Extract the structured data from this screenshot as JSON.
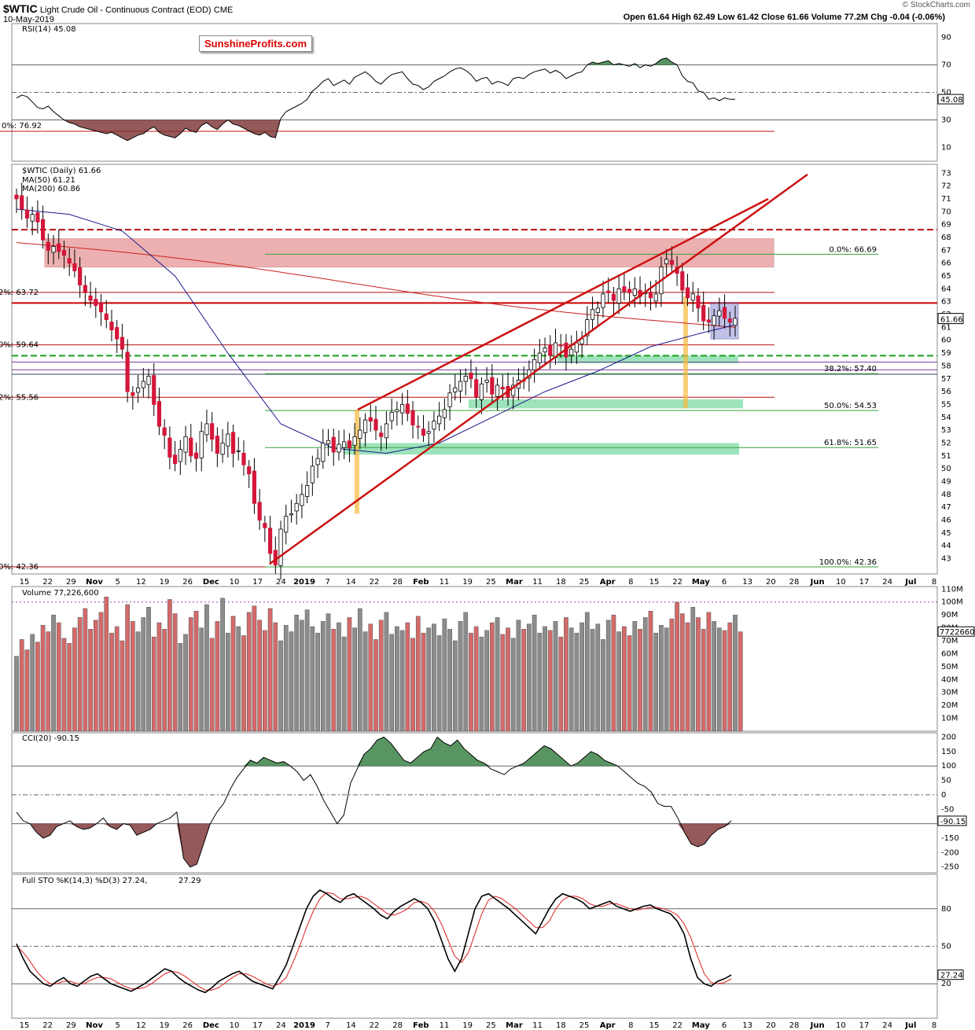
{
  "header": {
    "symbol": "$WTIC",
    "name": "Light Crude Oil - Continuous Contract (EOD)",
    "exchange": "CME",
    "date": "10-May-2019",
    "watermark_top": "© StockCharts.com",
    "ohlc": "Open 61.64  High 62.49  Low 61.42  Close 61.66  Volume 77.2M  Chg -0.04 (-0.06%)"
  },
  "watermark": "SunshineProfits.com",
  "colors": {
    "up": "#ffffff",
    "down": "#d4163a",
    "ma50": "#1a1a8c",
    "ma200": "#cc2222",
    "trend": "#cc1111",
    "support": "#3cc878",
    "resist": "#e07070",
    "vol_up": "#8c8c8c",
    "vol_down": "#d46a6a",
    "osc_pos": "#2f7a3c",
    "osc_neg": "#7a2f2f"
  },
  "panels": {
    "rsi": {
      "label": "RSI(14) 45.08",
      "last": "45.08",
      "ticks": [
        "90",
        "70",
        "50",
        "30",
        "10"
      ],
      "left_label": "0%: 76.92"
    },
    "price": {
      "label": "$WTIC (Daily) 61.66",
      "ma50_label": "MA(50) 61.21",
      "ma200_label": "MA(200) 60.86",
      "last": "61.66",
      "ticks": [
        "73",
        "72",
        "71",
        "70",
        "69",
        "68",
        "67",
        "66",
        "65",
        "64",
        "63",
        "62",
        "61",
        "60",
        "59",
        "58",
        "57",
        "56",
        "55",
        "54",
        "53",
        "52",
        "51",
        "50",
        "49",
        "48",
        "47",
        "46",
        "45",
        "44",
        "43"
      ],
      "fib_labels": [
        "0.0%: 66.69",
        "38.2%: 57.40",
        "50.0%: 54.53",
        "61.8%: 51.65",
        "100.0%: 42.36"
      ],
      "left_labels": [
        "2%: 63.72",
        "0%: 59.64",
        "2%: 55.56",
        "0%: 42.36"
      ]
    },
    "volume": {
      "label": "Volume 77,226,600",
      "last": "77226600",
      "ticks": [
        "110M",
        "100M",
        "90M",
        "80M",
        "70M",
        "60M",
        "50M",
        "40M",
        "30M",
        "20M",
        "10M"
      ]
    },
    "cci": {
      "label": "CCI(20) -90.15",
      "last": "-90.15",
      "ticks": [
        "200",
        "150",
        "100",
        "50",
        "0",
        "-50",
        "-100",
        "-150",
        "-200",
        "-250"
      ]
    },
    "sto": {
      "label": "Full STO %K(14,3) %D(3) 27.24, 27.29",
      "label_k": "Full STO %K(14,3) %D(3) 27.24,",
      "label_d": "27.29",
      "last": "27.24",
      "ticks": [
        "80",
        "50",
        "20"
      ]
    }
  },
  "date_axis": [
    "15",
    "22",
    "29",
    "Nov",
    "5",
    "12",
    "19",
    "26",
    "Dec",
    "10",
    "17",
    "24",
    "2019",
    "7",
    "14",
    "22",
    "28",
    "Feb",
    "11",
    "19",
    "25",
    "Mar",
    "11",
    "18",
    "25",
    "Apr",
    "8",
    "15",
    "22",
    "May",
    "6",
    "13",
    "20",
    "28",
    "Jun",
    "10",
    "17",
    "24",
    "Jul",
    "8"
  ],
  "chart_data": {
    "type": "candlestick",
    "title": "$WTIC Light Crude Oil - Continuous Contract (EOD)",
    "period": "Oct 2018 - May 10 2019",
    "last_bar": {
      "open": 61.64,
      "high": 62.49,
      "low": 61.42,
      "close": 61.66,
      "volume": 77226600
    },
    "ma50": 61.21,
    "ma200": 60.86,
    "close_series": [
      71.0,
      70.2,
      69.5,
      69.8,
      69.2,
      67.8,
      67.0,
      67.3,
      66.9,
      66.6,
      66.0,
      65.4,
      64.3,
      63.7,
      63.1,
      62.7,
      62.2,
      61.6,
      60.8,
      60.1,
      59.3,
      56.0,
      55.7,
      56.3,
      56.8,
      57.2,
      55.0,
      53.3,
      52.6,
      50.9,
      50.4,
      51.5,
      52.5,
      51.0,
      50.8,
      52.9,
      53.5,
      52.3,
      51.2,
      52.0,
      52.7,
      51.2,
      51.4,
      50.3,
      49.6,
      47.3,
      46.0,
      45.4,
      43.4,
      42.5,
      45.3,
      46.3,
      46.5,
      47.3,
      48.0,
      48.7,
      50.2,
      50.8,
      52.0,
      52.2,
      51.3,
      51.9,
      52.1,
      51.6,
      52.5,
      53.0,
      53.8,
      53.7,
      53.0,
      52.5,
      53.5,
      54.4,
      54.6,
      55.0,
      54.3,
      53.4,
      53.3,
      52.6,
      52.9,
      53.7,
      54.1,
      54.6,
      55.9,
      56.3,
      56.8,
      57.2,
      57.0,
      55.6,
      56.6,
      56.9,
      55.8,
      56.5,
      56.2,
      55.6,
      56.5,
      56.9,
      56.8,
      57.7,
      58.5,
      59.0,
      59.4,
      58.8,
      59.8,
      59.6,
      58.7,
      59.3,
      59.8,
      60.1,
      61.6,
      62.4,
      62.5,
      63.6,
      63.7,
      63.1,
      64.0,
      63.8,
      63.7,
      64.0,
      63.4,
      63.7,
      63.3,
      63.6,
      65.7,
      66.3,
      65.9,
      65.2,
      63.9,
      63.3,
      63.6,
      62.5,
      61.5,
      61.4,
      61.9,
      62.3,
      61.7,
      61.4,
      61.7
    ],
    "volume_M": [
      58,
      71,
      63,
      75,
      69,
      82,
      77,
      90,
      84,
      72,
      68,
      80,
      88,
      95,
      79,
      86,
      92,
      104,
      76,
      81,
      70,
      98,
      85,
      77,
      88,
      96,
      73,
      84,
      79,
      102,
      91,
      68,
      75,
      88,
      93,
      80,
      98,
      72,
      85,
      103,
      76,
      89,
      81,
      74,
      92,
      97,
      86,
      78,
      95,
      84,
      70,
      82,
      77,
      90,
      86,
      94,
      81,
      76,
      85,
      91,
      79,
      84,
      73,
      88,
      80,
      95,
      77,
      83,
      71,
      86,
      92,
      75,
      81,
      78,
      84,
      72,
      89,
      76,
      80,
      83,
      74,
      87,
      79,
      70,
      85,
      92,
      76,
      81,
      73,
      78,
      84,
      88,
      75,
      80,
      72,
      86,
      79,
      83,
      90,
      76,
      81,
      78,
      85,
      73,
      88,
      80,
      76,
      84,
      92,
      79,
      83,
      71,
      86,
      90,
      77,
      81,
      74,
      85,
      79,
      88,
      93,
      76,
      82,
      80,
      87,
      100,
      91,
      84,
      96,
      88,
      79,
      92,
      85,
      80,
      78,
      84,
      90,
      77
    ],
    "rsi_series": [
      46,
      48,
      47,
      43,
      39,
      38,
      40,
      36,
      33,
      30,
      28,
      27,
      25,
      24,
      23,
      22,
      21,
      20,
      21,
      19,
      17,
      15,
      17,
      19,
      20,
      23,
      25,
      21,
      19,
      18,
      17,
      20,
      24,
      22,
      21,
      26,
      28,
      25,
      23,
      27,
      30,
      27,
      26,
      24,
      22,
      20,
      19,
      21,
      18,
      17,
      31,
      36,
      38,
      40,
      42,
      45,
      51,
      54,
      58,
      60,
      55,
      57,
      59,
      56,
      61,
      63,
      65,
      62,
      58,
      56,
      60,
      63,
      64,
      65,
      60,
      56,
      55,
      52,
      54,
      58,
      60,
      62,
      65,
      67,
      68,
      66,
      63,
      58,
      60,
      61,
      56,
      58,
      57,
      55,
      60,
      61,
      60,
      63,
      65,
      66,
      67,
      64,
      66,
      64,
      60,
      62,
      64,
      65,
      70,
      72,
      71,
      72,
      73,
      70,
      71,
      70,
      69,
      71,
      68,
      70,
      69,
      71,
      74,
      75,
      72,
      70,
      62,
      58,
      57,
      51,
      50,
      45,
      46,
      44,
      46,
      45,
      45
    ],
    "cci_series": [
      -60,
      -90,
      -100,
      -130,
      -150,
      -140,
      -110,
      -100,
      -90,
      -110,
      -120,
      -115,
      -100,
      -80,
      -110,
      -120,
      -100,
      -105,
      -140,
      -130,
      -120,
      -100,
      -90,
      -80,
      -60,
      -220,
      -250,
      -240,
      -170,
      -100,
      -60,
      -30,
      20,
      60,
      90,
      120,
      110,
      130,
      120,
      110,
      115,
      100,
      80,
      50,
      70,
      30,
      -20,
      -60,
      -100,
      -70,
      40,
      90,
      140,
      160,
      190,
      200,
      180,
      150,
      120,
      110,
      130,
      150,
      160,
      200,
      180,
      170,
      190,
      160,
      140,
      120,
      110,
      90,
      80,
      70,
      90,
      100,
      110,
      130,
      150,
      170,
      160,
      140,
      120,
      100,
      110,
      130,
      150,
      140,
      120,
      110,
      100,
      80,
      60,
      40,
      30,
      10,
      -30,
      -40,
      -40,
      -80,
      -130,
      -170,
      -180,
      -170,
      -140,
      -120,
      -110,
      -90
    ],
    "sto_k_series": [
      52,
      40,
      30,
      25,
      20,
      18,
      22,
      25,
      20,
      18,
      22,
      26,
      28,
      24,
      20,
      18,
      16,
      14,
      17,
      20,
      24,
      28,
      32,
      30,
      25,
      21,
      18,
      15,
      13,
      17,
      22,
      25,
      28,
      30,
      26,
      22,
      20,
      18,
      16,
      25,
      35,
      50,
      65,
      80,
      90,
      95,
      92,
      88,
      85,
      90,
      92,
      88,
      84,
      80,
      75,
      72,
      78,
      82,
      85,
      88,
      85,
      80,
      70,
      55,
      40,
      30,
      40,
      60,
      80,
      90,
      92,
      88,
      84,
      80,
      75,
      70,
      65,
      60,
      70,
      80,
      88,
      92,
      90,
      88,
      85,
      80,
      82,
      84,
      86,
      82,
      80,
      78,
      80,
      82,
      83,
      80,
      78,
      76,
      70,
      60,
      40,
      25,
      20,
      18,
      22,
      24,
      27
    ],
    "sto_d_series": [
      50,
      45,
      38,
      30,
      24,
      20,
      20,
      22,
      22,
      20,
      20,
      23,
      25,
      25,
      24,
      21,
      18,
      16,
      16,
      17,
      20,
      24,
      28,
      30,
      29,
      26,
      22,
      18,
      15,
      15,
      17,
      21,
      25,
      28,
      28,
      26,
      23,
      20,
      18,
      20,
      25,
      37,
      50,
      65,
      78,
      88,
      93,
      92,
      88,
      88,
      89,
      90,
      88,
      84,
      80,
      76,
      75,
      77,
      80,
      85,
      86,
      84,
      78,
      68,
      55,
      42,
      37,
      45,
      60,
      76,
      87,
      90,
      88,
      84,
      80,
      75,
      70,
      65,
      65,
      70,
      80,
      87,
      90,
      90,
      88,
      84,
      82,
      82,
      84,
      84,
      82,
      80,
      79,
      80,
      81,
      81,
      80,
      78,
      75,
      68,
      57,
      42,
      28,
      21,
      20,
      21,
      24
    ]
  }
}
